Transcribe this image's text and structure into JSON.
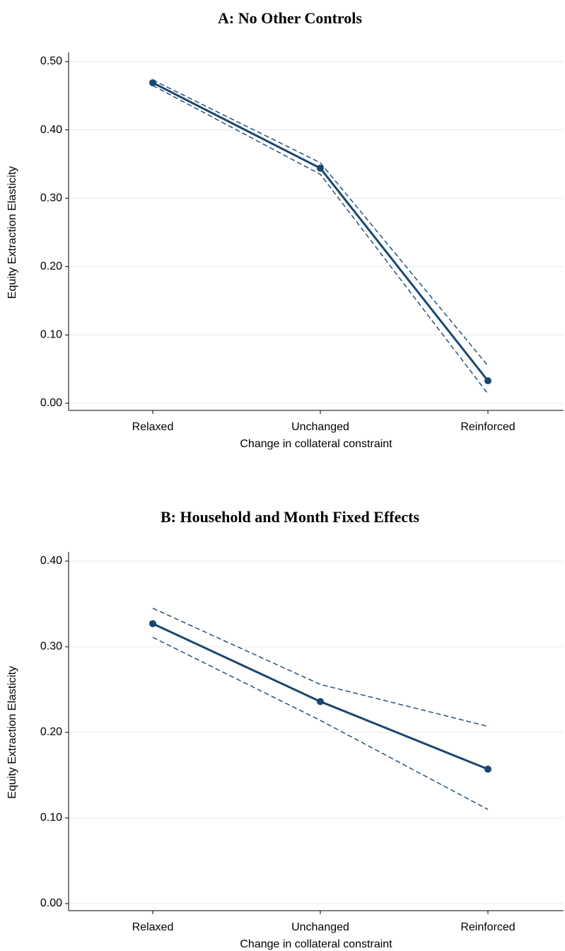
{
  "chart_data": [
    {
      "type": "line",
      "title": "A: No Other Controls",
      "x_label": "Change in collateral constraint",
      "y_label": "Equity Extraction Elasticity",
      "categories": [
        "Relaxed",
        "Unchanged",
        "Reinforced"
      ],
      "series": [
        {
          "color": "#1a476f",
          "style": "solid",
          "markers": true,
          "values": [
            0.469,
            0.344,
            0.033
          ]
        },
        {
          "color": "#1a476f",
          "style": "dashed",
          "markers": false,
          "values": [
            0.473,
            0.352,
            0.055
          ]
        },
        {
          "color": "#1a476f",
          "style": "dashed",
          "markers": false,
          "values": [
            0.465,
            0.335,
            0.014
          ]
        }
      ],
      "ylim": [
        0,
        0.5
      ],
      "yticks": [
        {
          "value": 0,
          "label": "0.00"
        },
        {
          "value": 0.1,
          "label": "0.10"
        },
        {
          "value": 0.2,
          "label": "0.20"
        },
        {
          "value": 0.3,
          "label": "0.30"
        },
        {
          "value": 0.4,
          "label": "0.40"
        },
        {
          "value": 0.5,
          "label": "0.50"
        }
      ],
      "grid": true
    },
    {
      "type": "line",
      "title": "B: Household and Month Fixed Effects",
      "x_label": "Change in collateral constraint",
      "y_label": "Equity Extraction Elasticity",
      "categories": [
        "Relaxed",
        "Unchanged",
        "Reinforced"
      ],
      "series": [
        {
          "color": "#1a476f",
          "style": "solid",
          "markers": true,
          "values": [
            0.327,
            0.236,
            0.157
          ]
        },
        {
          "color": "#1a476f",
          "style": "dashed",
          "markers": false,
          "values": [
            0.345,
            0.256,
            0.207
          ]
        },
        {
          "color": "#1a476f",
          "style": "dashed",
          "markers": false,
          "values": [
            0.311,
            0.214,
            0.11
          ]
        }
      ],
      "ylim": [
        0,
        0.4
      ],
      "yticks": [
        {
          "value": 0,
          "label": "0.00"
        },
        {
          "value": 0.1,
          "label": "0.10"
        },
        {
          "value": 0.2,
          "label": "0.20"
        },
        {
          "value": 0.3,
          "label": "0.30"
        },
        {
          "value": 0.4,
          "label": "0.40"
        }
      ],
      "grid": true
    }
  ]
}
